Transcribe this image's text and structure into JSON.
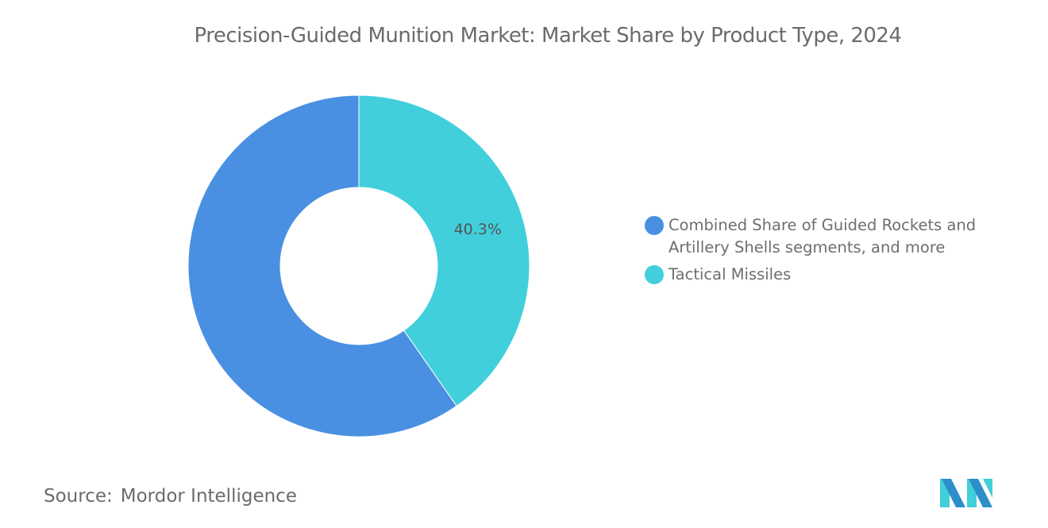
{
  "chart_data": {
    "type": "pie",
    "variant": "donut",
    "title": "Precision-Guided Munition Market: Market Share by Product Type, 2024",
    "categories": [
      "Tactical Missiles",
      "Combined Share of Guided Rockets and Artillery Shells segments, and more"
    ],
    "values": [
      40.3,
      59.7
    ],
    "data_labels": [
      "40.3%",
      ""
    ],
    "colors": [
      "#41cfdb",
      "#4a90e2"
    ],
    "start": "top, clockwise",
    "legend": {
      "placement": "right",
      "entries": [
        {
          "label": "Combined Share of Guided Rockets and Artillery Shells segments, and more",
          "color": "#4a90e2"
        },
        {
          "label": "Tactical Missiles",
          "color": "#41cfdb"
        }
      ]
    }
  },
  "source": {
    "label": "Source:",
    "value": "Mordor Intelligence"
  },
  "logo": {
    "name": "mordor-intelligence-logo",
    "colors": [
      "#2c8fc9",
      "#41cfdb"
    ]
  }
}
